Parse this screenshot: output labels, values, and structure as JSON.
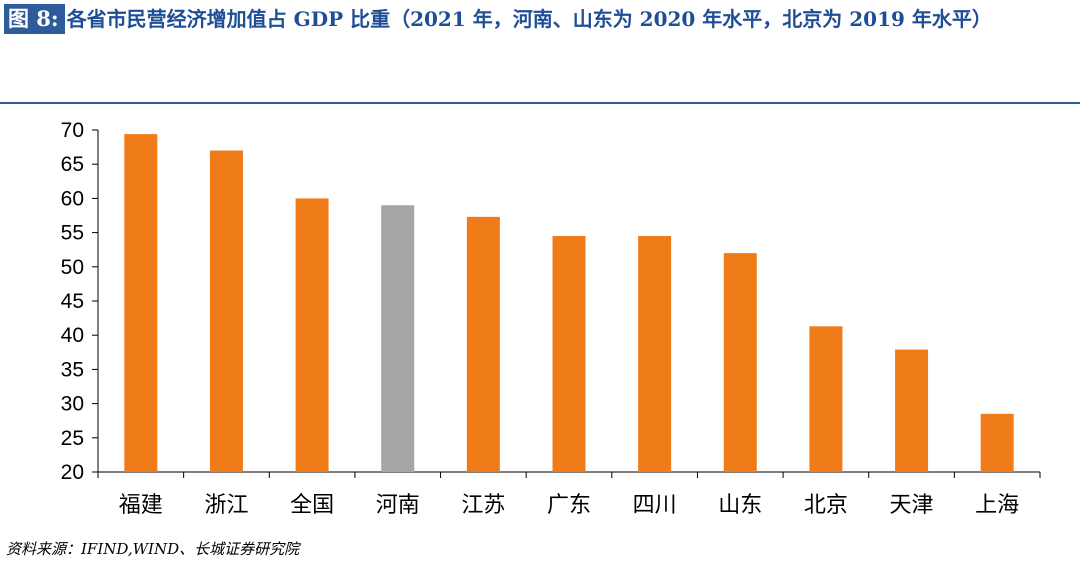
{
  "figure": {
    "label": "图 8:",
    "title": "各省市民营经济增加值占 GDP 比重（2021 年，河南、山东为 2020 年水平，北京为 2019 年水平）"
  },
  "source": "资料来源：IFIND,WIND、长城证券研究院",
  "colors": {
    "main": "#f07c19",
    "highlight": "#a6a6a6",
    "axis": "#000000"
  },
  "chart_data": {
    "type": "bar",
    "title": "",
    "xlabel": "",
    "ylabel": "",
    "ylim": [
      20,
      70
    ],
    "yticks": [
      20,
      25,
      30,
      35,
      40,
      45,
      50,
      55,
      60,
      65,
      70
    ],
    "grid": false,
    "categories": [
      "福建",
      "浙江",
      "全国",
      "河南",
      "江苏",
      "广东",
      "四川",
      "山东",
      "北京",
      "天津",
      "上海"
    ],
    "values": [
      69.4,
      67.0,
      60.0,
      59.0,
      57.3,
      54.5,
      54.5,
      52.0,
      41.3,
      37.9,
      28.5
    ],
    "highlight_category": "河南"
  }
}
